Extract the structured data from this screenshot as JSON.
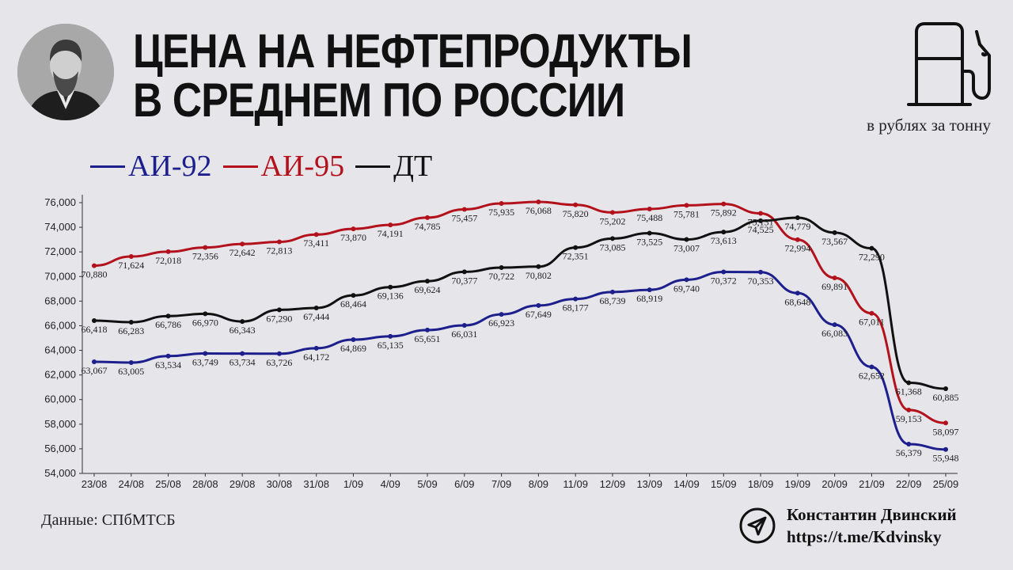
{
  "header": {
    "title_line1": "ЦЕНА НА НЕФТЕПРОДУКТЫ",
    "title_line2": "В СРЕДНЕМ ПО РОССИИ",
    "units": "в рублях за тонну"
  },
  "icons": {
    "portrait": "portrait-photo",
    "fuel": "fuel-pump-icon",
    "telegram": "telegram-icon"
  },
  "footer": {
    "source": "Данные: СПбМТСБ",
    "author_name": "Константин Двинский",
    "author_link": "https://t.me/Kdvinsky"
  },
  "chart_data": {
    "type": "line",
    "categories": [
      "23/08",
      "24/08",
      "25/08",
      "28/08",
      "29/08",
      "30/08",
      "31/08",
      "1/09",
      "4/09",
      "5/09",
      "6/09",
      "7/09",
      "8/09",
      "11/09",
      "12/09",
      "13/09",
      "14/09",
      "15/09",
      "18/09",
      "19/09",
      "20/09",
      "21/09",
      "22/09",
      "25/09"
    ],
    "ylim": [
      54000,
      76000
    ],
    "yticks": [
      "54,000",
      "56,000",
      "58,000",
      "60,000",
      "62,000",
      "64,000",
      "66,000",
      "68,000",
      "70,000",
      "72,000",
      "74,000",
      "76,000"
    ],
    "legend_position": "top-left",
    "grid": false,
    "series": [
      {
        "name": "АИ-92",
        "color": "#1c1f8c",
        "values": [
          63067,
          63005,
          63534,
          63749,
          63734,
          63726,
          64172,
          64869,
          65135,
          65651,
          66031,
          66923,
          67649,
          68177,
          68739,
          68919,
          69740,
          70372,
          70353,
          68648,
          66083,
          62652,
          56379,
          55948
        ],
        "labels": [
          "63,067",
          "63,005",
          "63,534",
          "63,749",
          "63,734",
          "63,726",
          "64,172",
          "64,869",
          "65,135",
          "65,651",
          "66,031",
          "66,923",
          "67,649",
          "68,177",
          "68,739",
          "68,919",
          "69,740",
          "70,372",
          "70,353",
          "68,648",
          "66,083",
          "62,652",
          "56,379",
          "55,948"
        ]
      },
      {
        "name": "АИ-95",
        "color": "#b3121d",
        "values": [
          70880,
          71624,
          72018,
          72356,
          72642,
          72813,
          73411,
          73870,
          74191,
          74785,
          75457,
          75935,
          76068,
          75820,
          75202,
          75488,
          75781,
          75892,
          75131,
          72994,
          69891,
          67011,
          59153,
          58097
        ],
        "labels": [
          "70,880",
          "71,624",
          "72,018",
          "72,356",
          "72,642",
          "72,813",
          "73,411",
          "73,870",
          "74,191",
          "74,785",
          "75,457",
          "75,935",
          "76,068",
          "75,820",
          "75,202",
          "75,488",
          "75,781",
          "75,892",
          "75,131",
          "72,994",
          "69,891",
          "67,011",
          "59,153",
          "58,097"
        ]
      },
      {
        "name": "ДТ",
        "color": "#111111",
        "values": [
          66418,
          66283,
          66786,
          66970,
          66343,
          67290,
          67444,
          68464,
          69136,
          69624,
          70377,
          70722,
          70802,
          72351,
          73085,
          73525,
          73007,
          73613,
          74525,
          74779,
          73567,
          72290,
          61368,
          60885
        ],
        "labels": [
          "66,418",
          "66,283",
          "66,786",
          "66,970",
          "66,343",
          "67,290",
          "67,444",
          "68,464",
          "69,136",
          "69,624",
          "70,377",
          "70,722",
          "70,802",
          "72,351",
          "73,085",
          "73,525",
          "73,007",
          "73,613",
          "74,525",
          "74,779",
          "73,567",
          "72,290",
          "61,368",
          "60,885"
        ]
      }
    ]
  }
}
